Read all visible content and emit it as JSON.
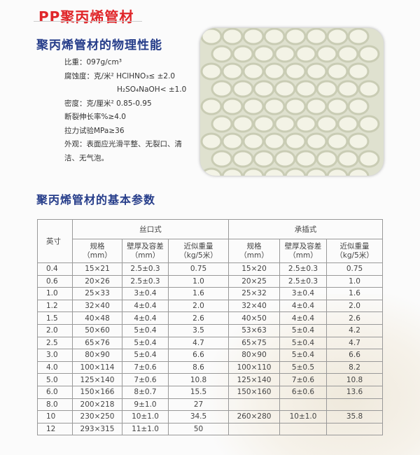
{
  "title": "PP聚丙烯管材",
  "subtitle": "聚丙烯管材的物理性能",
  "properties": [
    "比重：097g/cm³",
    "腐蚀度：克/米²  HClHNO₃≤ ±2.0",
    "H₂SO₄NaOH< ±1.0",
    "密度：克/厘米²  0.85-0.95",
    "断裂伸长率%≥4.0",
    "拉力试验MPa≥36",
    "外观：表面应光滑平整、无裂口、清",
    "洁、无气泡。"
  ],
  "section_title": "聚丙烯管材的基本参数",
  "table": {
    "col_inch": "英寸",
    "group1": "丝口式",
    "group2": "承插式",
    "sub_headers": [
      "规格\n（mm）",
      "壁厚及容差\n（mm）",
      "近似重量\n（kg/5米）",
      "规格\n（mm）",
      "壁厚及容差\n（mm）",
      "近似重量\n（kg/5米）"
    ],
    "rows": [
      [
        "0.4",
        "15×21",
        "2.5±0.3",
        "0.75",
        "15×20",
        "2.5±0.3",
        "0.75"
      ],
      [
        "0.6",
        "20×26",
        "2.5±0.3",
        "1.0",
        "20×25",
        "2.5±0.3",
        "1.0"
      ],
      [
        "1.0",
        "25×33",
        "3±0.4",
        "1.6",
        "25×32",
        "3±0.4",
        "1.6"
      ],
      [
        "1.2",
        "32×40",
        "4±0.4",
        "2.0",
        "32×40",
        "4±0.4",
        "2.0"
      ],
      [
        "1.5",
        "40×48",
        "4±0.4",
        "2.6",
        "40×50",
        "4±0.4",
        "2.6"
      ],
      [
        "2.0",
        "50×60",
        "5±0.4",
        "3.5",
        "53×63",
        "5±0.4",
        "4.2"
      ],
      [
        "2.5",
        "65×76",
        "5±0.4",
        "4.7",
        "65×75",
        "5±0.4",
        "4.7"
      ],
      [
        "3.0",
        "80×90",
        "5±0.4",
        "6.6",
        "80×90",
        "5±0.4",
        "6.6"
      ],
      [
        "4.0",
        "100×114",
        "7±0.6",
        "8.6",
        "100×110",
        "5±0.5",
        "8.2"
      ],
      [
        "5.0",
        "125×140",
        "7±0.6",
        "10.8",
        "125×140",
        "7±0.6",
        "10.8"
      ],
      [
        "6.0",
        "150×166",
        "8±0.7",
        "15.5",
        "150×160",
        "6±0.6",
        "13.6"
      ],
      [
        "8.0",
        "200×218",
        "9±1.0",
        "27",
        "",
        "",
        ""
      ],
      [
        "10",
        "230×250",
        "10±1.0",
        "34.5",
        "260×280",
        "10±1.0",
        "35.8"
      ],
      [
        "12",
        "293×315",
        "11±1.0",
        "50",
        "",
        "",
        ""
      ]
    ]
  },
  "colors": {
    "title": "#e0262a",
    "heading": "#263d8a"
  }
}
